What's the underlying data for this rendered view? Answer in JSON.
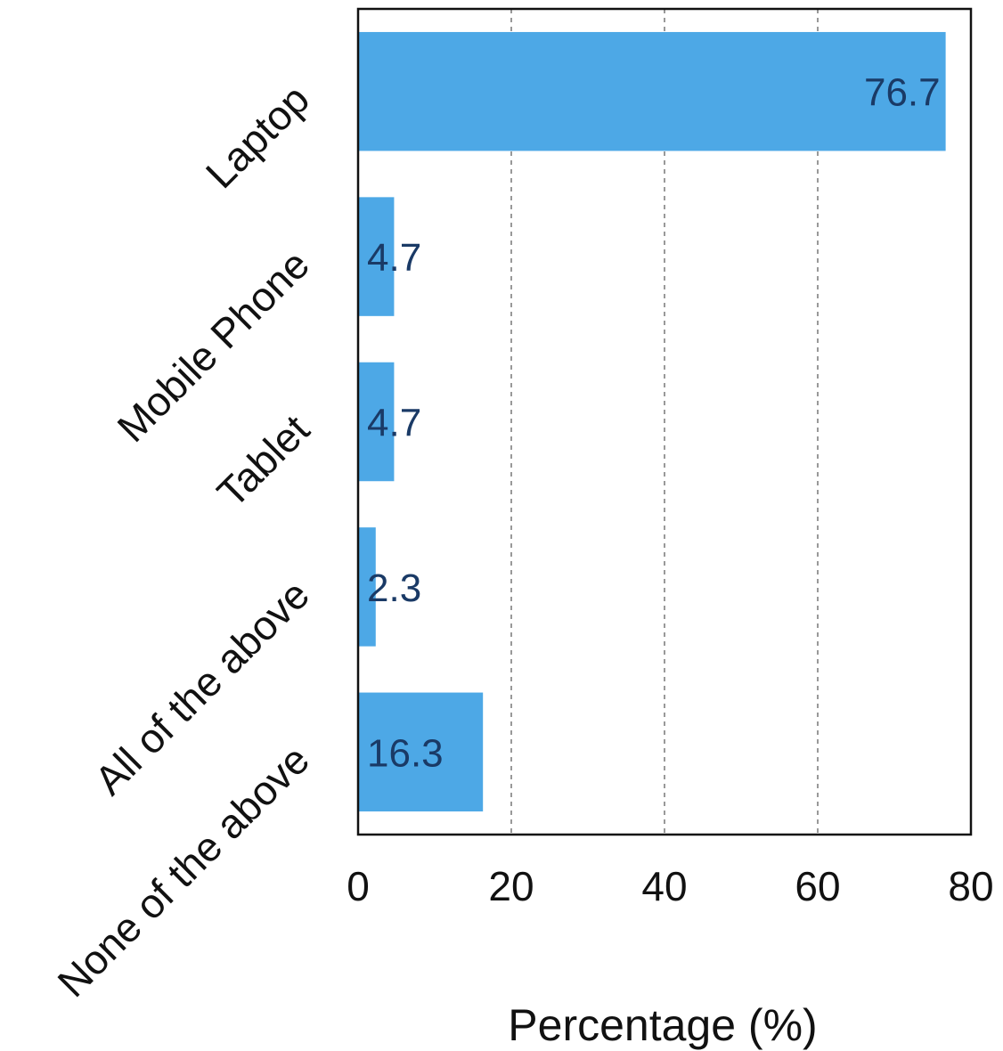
{
  "chart_data": {
    "type": "bar",
    "orientation": "horizontal",
    "categories": [
      "Laptop",
      "Mobile Phone",
      "Tablet",
      "All of the above",
      "None of the above"
    ],
    "values": [
      76.7,
      4.7,
      4.7,
      2.3,
      16.3
    ],
    "value_labels": [
      "76.7",
      "4.7",
      "4.7",
      "2.3",
      "16.3"
    ],
    "xlabel": "Percentage (%)",
    "ylabel": "",
    "xlim": [
      0,
      80
    ],
    "xticks": [
      0,
      20,
      40,
      60,
      80
    ],
    "xtick_labels": [
      "0",
      "20",
      "40",
      "60",
      "80"
    ],
    "grid": "vertical dashed",
    "colors": {
      "bar": "#4da8e6",
      "data_label": "#1a3a66",
      "grid": "#999999"
    }
  }
}
